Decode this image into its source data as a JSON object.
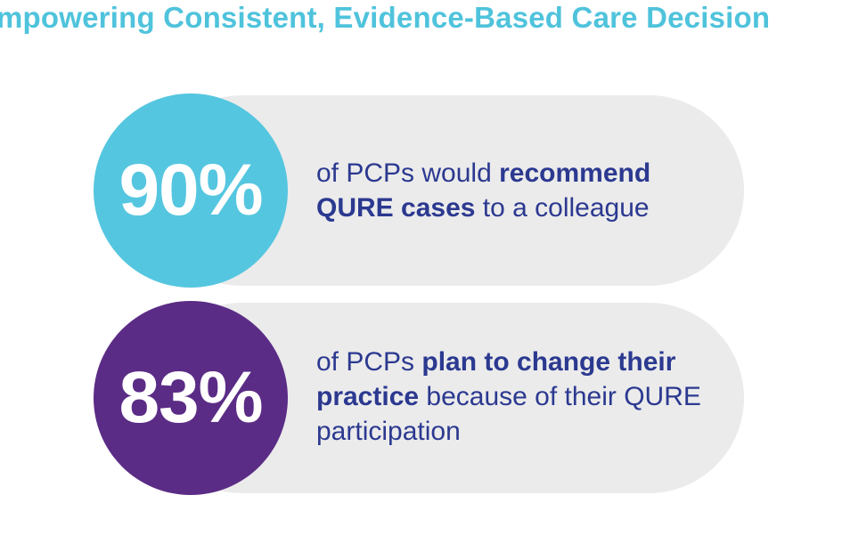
{
  "title": "mpowering Consistent, Evidence-Based Care Decision",
  "stats": [
    {
      "value": "90%",
      "color": "#55c6e0",
      "text": {
        "part1": "of PCPs would ",
        "bold1": "recommend QURE cases",
        "part2": " to a colleague"
      }
    },
    {
      "value": "83%",
      "color": "#5b2c86",
      "text": {
        "part1": "of PCPs ",
        "bold1": "plan to change their practice",
        "part2": " because of their QURE participation"
      }
    }
  ],
  "colors": {
    "title": "#4fc3dc",
    "body_text": "#2b3990",
    "pill_background": "#ebebeb"
  }
}
